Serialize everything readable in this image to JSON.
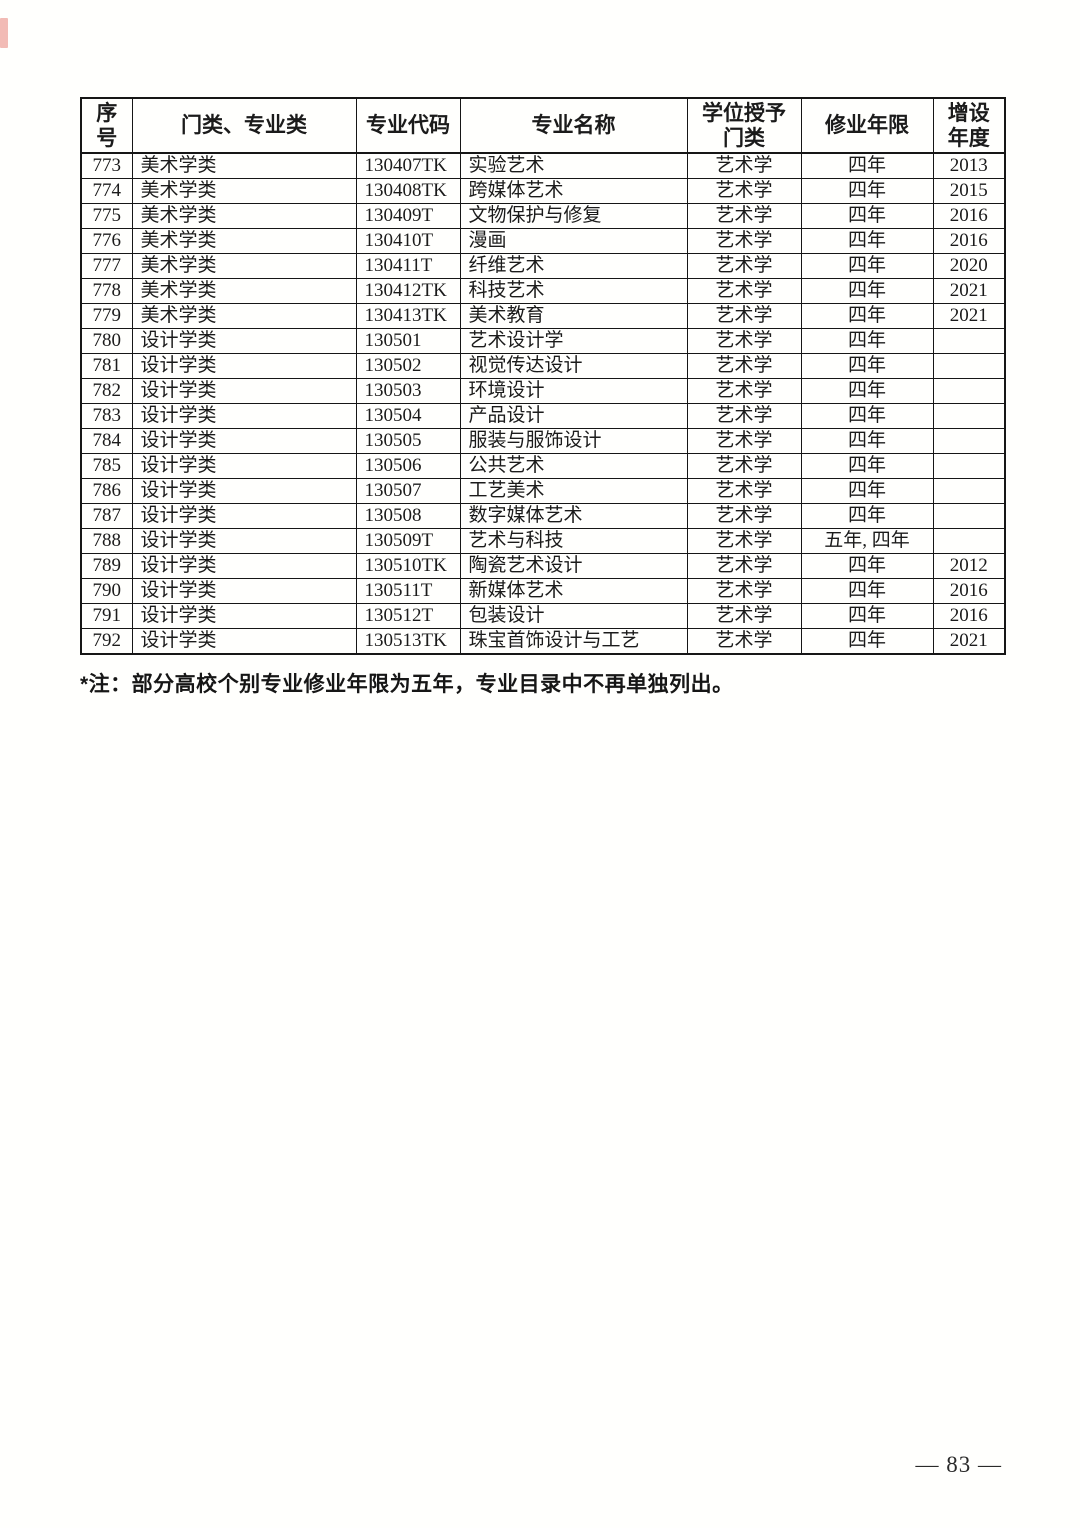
{
  "table": {
    "headers": [
      "序号",
      "门类、专业类",
      "专业代码",
      "专业名称",
      "学位授予门类",
      "修业年限",
      "增设年度"
    ],
    "rows": [
      [
        "773",
        "美术学类",
        "130407TK",
        "实验艺术",
        "艺术学",
        "四年",
        "2013"
      ],
      [
        "774",
        "美术学类",
        "130408TK",
        "跨媒体艺术",
        "艺术学",
        "四年",
        "2015"
      ],
      [
        "775",
        "美术学类",
        "130409T",
        "文物保护与修复",
        "艺术学",
        "四年",
        "2016"
      ],
      [
        "776",
        "美术学类",
        "130410T",
        "漫画",
        "艺术学",
        "四年",
        "2016"
      ],
      [
        "777",
        "美术学类",
        "130411T",
        "纤维艺术",
        "艺术学",
        "四年",
        "2020"
      ],
      [
        "778",
        "美术学类",
        "130412TK",
        "科技艺术",
        "艺术学",
        "四年",
        "2021"
      ],
      [
        "779",
        "美术学类",
        "130413TK",
        "美术教育",
        "艺术学",
        "四年",
        "2021"
      ],
      [
        "780",
        "设计学类",
        "130501",
        "艺术设计学",
        "艺术学",
        "四年",
        ""
      ],
      [
        "781",
        "设计学类",
        "130502",
        "视觉传达设计",
        "艺术学",
        "四年",
        ""
      ],
      [
        "782",
        "设计学类",
        "130503",
        "环境设计",
        "艺术学",
        "四年",
        ""
      ],
      [
        "783",
        "设计学类",
        "130504",
        "产品设计",
        "艺术学",
        "四年",
        ""
      ],
      [
        "784",
        "设计学类",
        "130505",
        "服装与服饰设计",
        "艺术学",
        "四年",
        ""
      ],
      [
        "785",
        "设计学类",
        "130506",
        "公共艺术",
        "艺术学",
        "四年",
        ""
      ],
      [
        "786",
        "设计学类",
        "130507",
        "工艺美术",
        "艺术学",
        "四年",
        ""
      ],
      [
        "787",
        "设计学类",
        "130508",
        "数字媒体艺术",
        "艺术学",
        "四年",
        ""
      ],
      [
        "788",
        "设计学类",
        "130509T",
        "艺术与科技",
        "艺术学",
        "五年, 四年",
        ""
      ],
      [
        "789",
        "设计学类",
        "130510TK",
        "陶瓷艺术设计",
        "艺术学",
        "四年",
        "2012"
      ],
      [
        "790",
        "设计学类",
        "130511T",
        "新媒体艺术",
        "艺术学",
        "四年",
        "2016"
      ],
      [
        "791",
        "设计学类",
        "130512T",
        "包装设计",
        "艺术学",
        "四年",
        "2016"
      ],
      [
        "792",
        "设计学类",
        "130513TK",
        "珠宝首饰设计与工艺",
        "艺术学",
        "四年",
        "2021"
      ]
    ]
  },
  "footnote": "*注：部分高校个别专业修业年限为五年，专业目录中不再单独列出。",
  "footer": {
    "page_number": "— 83 —"
  },
  "colors": {
    "scan_mark": "#e8837a",
    "text": "#1b1b1b",
    "border": "#161616"
  }
}
